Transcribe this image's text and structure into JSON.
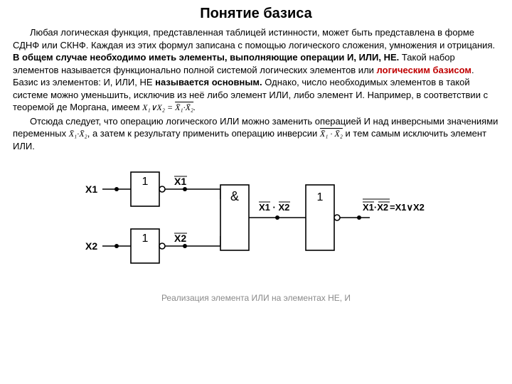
{
  "title": "Понятие базиса",
  "para1": {
    "t1": "Любая логическая функция, представленная таблицей истинности, может быть представлена в форме СДНФ или СКНФ. Каждая из этих формул записана с помощью логического сложения, умножения и отрицания. ",
    "bold1": "В общем случае необходимо иметь элементы, выполняющие операции И, ИЛИ, НЕ.",
    "t2": " Такой набор элементов называется функционально полной системой логических элементов  или ",
    "red1": "логическим базисом",
    "t3": ". Базис из элементов: И, ИЛИ, НЕ ",
    "bold2": "называется основным.",
    "t4": " Однако, число необходимых элементов в такой системе можно уменьшить, исключив из неё либо элемент ИЛИ, либо элемент И. Например, в соответствии с теоремой де Моргана, имеем "
  },
  "formula1": {
    "lhs": "X₁∨X₂",
    "mid": " = ",
    "rhs_outer_over": "X̄₁·X̄₂",
    "tail": "."
  },
  "para2": {
    "t1": "Отсюда следует, что операцию логического ИЛИ можно заменить операцией И над инверсными значениями переменных ",
    "f1": "X̄₁·X̄₂",
    "t2": ", а затем к результату применить операцию инверсии ",
    "f2": "X̄₁ · X̄₂",
    "t3": " и тем самым исключить элемент ИЛИ."
  },
  "diagram": {
    "inputs": {
      "x1": "X1",
      "x2": "X2"
    },
    "gate_not": "1",
    "gate_and": "&",
    "gate_out": "1",
    "wire_nx1": "X1",
    "wire_nx2": "X2",
    "wire_and": "X1 · X2",
    "wire_result_lhs": "X1·X2",
    "wire_result_rhs": "=X1∨X2",
    "stroke": "#000000",
    "node_radius": 3,
    "bubble_radius": 4,
    "font_size_label": 14,
    "font_size_gate": 16,
    "gate_w": 40,
    "gate_h": 48,
    "big_gate_h": 92
  },
  "caption": "Реализация элемента ИЛИ на элементах НЕ, И",
  "colors": {
    "text": "#000000",
    "red": "#c00000",
    "caption": "#8a8a8a",
    "bg": "#ffffff"
  }
}
